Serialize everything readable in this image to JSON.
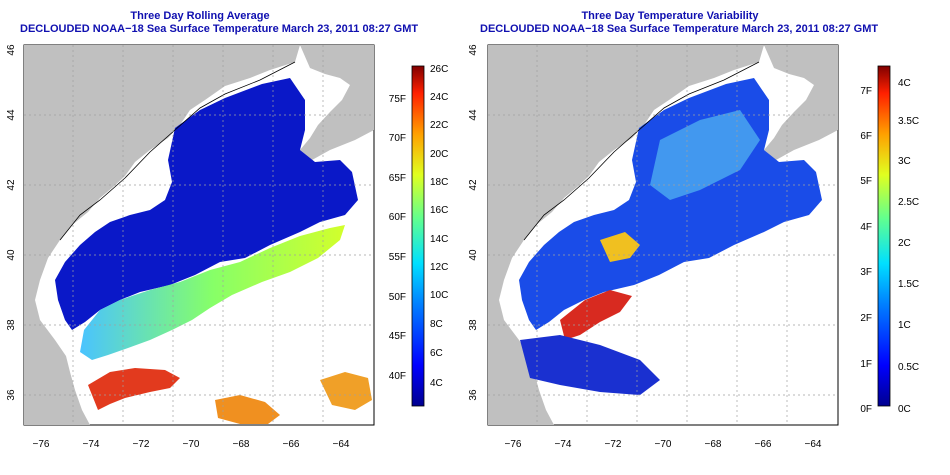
{
  "panels": [
    {
      "title_line1": "Three Day Rolling Average",
      "title_line2": "DECLOUDED NOAA−18 Sea Surface Temperature March 23, 2011 08:27 GMT",
      "x_ticks": [
        "−76",
        "−74",
        "−72",
        "−70",
        "−68",
        "−66",
        "−64"
      ],
      "y_ticks": [
        "36",
        "38",
        "40",
        "42",
        "44",
        "46"
      ],
      "colorbar_left_labels": [
        "40F",
        "45F",
        "50F",
        "55F",
        "60F",
        "65F",
        "70F",
        "75F"
      ],
      "colorbar_right_labels": [
        "4C",
        "6C",
        "8C",
        "10C",
        "12C",
        "14C",
        "16C",
        "18C",
        "20C",
        "22C",
        "24C",
        "26C"
      ]
    },
    {
      "title_line1": "Three Day Temperature Variability",
      "title_line2": "DECLOUDED NOAA−18 Sea Surface Temperature March 23, 2011 08:27 GMT",
      "x_ticks": [
        "−76",
        "−74",
        "−72",
        "−70",
        "−68",
        "−66",
        "−64"
      ],
      "y_ticks": [
        "36",
        "38",
        "40",
        "42",
        "44",
        "46"
      ],
      "colorbar_left_labels": [
        "0F",
        "1F",
        "2F",
        "3F",
        "4F",
        "5F",
        "6F",
        "7F"
      ],
      "colorbar_right_labels": [
        "0C",
        "0.5C",
        "1C",
        "1.5C",
        "2C",
        "2.5C",
        "3C",
        "3.5C",
        "4C"
      ]
    }
  ],
  "colors": {
    "land": "#c0c0c0",
    "cold": "#0a10c8",
    "warm": "#e23a1e",
    "title": "#1010b0"
  }
}
